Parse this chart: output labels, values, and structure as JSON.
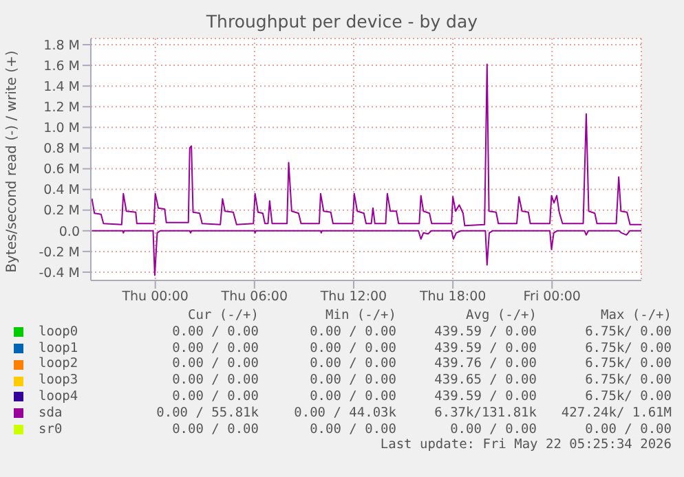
{
  "chart_data": {
    "type": "line",
    "title": "Throughput per device - by day",
    "ylabel": "Bytes/second read (-) / write (+)",
    "xlim": [
      "2026-05-20T20:06",
      "2026-05-22T05:24"
    ],
    "xticks": [
      {
        "value": "2026-05-21T00:00",
        "label": "Thu 00:00"
      },
      {
        "value": "2026-05-21T06:00",
        "label": "Thu 06:00"
      },
      {
        "value": "2026-05-21T12:00",
        "label": "Thu 12:00"
      },
      {
        "value": "2026-05-21T18:00",
        "label": "Thu 18:00"
      },
      {
        "value": "2026-05-22T00:00",
        "label": "Fri 00:00"
      }
    ],
    "ylim": [
      -0.48,
      1.86
    ],
    "yticks": [
      {
        "value": -0.4,
        "label": "-0.4 M"
      },
      {
        "value": -0.2,
        "label": "-0.2 M"
      },
      {
        "value": 0,
        "label": "0.0"
      },
      {
        "value": 0.2,
        "label": "0.2 M"
      },
      {
        "value": 0.4,
        "label": "0.4 M"
      },
      {
        "value": 0.6,
        "label": "0.6 M"
      },
      {
        "value": 0.8,
        "label": "0.8 M"
      },
      {
        "value": 1.0,
        "label": "1.0 M"
      },
      {
        "value": 1.2,
        "label": "1.2 M"
      },
      {
        "value": 1.4,
        "label": "1.4 M"
      },
      {
        "value": 1.6,
        "label": "1.6 M"
      },
      {
        "value": 1.8,
        "label": "1.8 M"
      }
    ],
    "grid": true,
    "legend": "bottom",
    "marker": "none",
    "line_style": "solid",
    "series": [
      {
        "name": "loop0",
        "color": "#00cc00"
      },
      {
        "name": "loop1",
        "color": "#0066b3"
      },
      {
        "name": "loop2",
        "color": "#ff8000"
      },
      {
        "name": "loop3",
        "color": "#ffcc00"
      },
      {
        "name": "loop4",
        "color": "#330099"
      },
      {
        "name": "sda",
        "color": "#990099",
        "x": [
          "2026-05-20T20:10",
          "2026-05-20T20:19",
          "2026-05-20T20:43",
          "2026-05-20T20:52",
          "2026-05-20T21:58",
          "2026-05-20T22:04",
          "2026-05-20T22:15",
          "2026-05-20T22:49",
          "2026-05-20T22:53",
          "2026-05-20T23:55",
          "2026-05-21T00:00",
          "2026-05-21T00:11",
          "2026-05-21T00:34",
          "2026-05-21T00:40",
          "2026-05-21T02:00",
          "2026-05-21T02:05",
          "2026-05-21T02:11",
          "2026-05-21T02:17",
          "2026-05-21T02:41",
          "2026-05-21T02:50",
          "2026-05-21T03:56",
          "2026-05-21T04:04",
          "2026-05-21T04:13",
          "2026-05-21T04:43",
          "2026-05-21T04:55",
          "2026-05-21T05:56",
          "2026-05-21T06:02",
          "2026-05-21T06:13",
          "2026-05-21T06:30",
          "2026-05-21T06:38",
          "2026-05-21T06:49",
          "2026-05-21T06:55",
          "2026-05-21T07:04",
          "2026-05-21T07:58",
          "2026-05-21T08:04",
          "2026-05-21T08:15",
          "2026-05-21T08:40",
          "2026-05-21T08:49",
          "2026-05-21T09:55",
          "2026-05-21T10:00",
          "2026-05-21T10:11",
          "2026-05-21T10:37",
          "2026-05-21T10:45",
          "2026-05-21T11:56",
          "2026-05-21T12:02",
          "2026-05-21T12:13",
          "2026-05-21T12:37",
          "2026-05-21T12:45",
          "2026-05-21T13:04",
          "2026-05-21T13:10",
          "2026-05-21T13:17",
          "2026-05-21T13:56",
          "2026-05-21T14:02",
          "2026-05-21T14:13",
          "2026-05-21T14:35",
          "2026-05-21T14:43",
          "2026-05-21T15:58",
          "2026-05-21T16:04",
          "2026-05-21T16:13",
          "2026-05-21T16:35",
          "2026-05-21T16:43",
          "2026-05-21T17:55",
          "2026-05-21T18:00",
          "2026-05-21T18:10",
          "2026-05-21T18:23",
          "2026-05-21T18:37",
          "2026-05-21T18:43",
          "2026-05-21T19:55",
          "2026-05-21T20:04",
          "2026-05-21T20:11",
          "2026-05-21T20:37",
          "2026-05-21T20:45",
          "2026-05-21T21:52",
          "2026-05-21T22:00",
          "2026-05-21T22:11",
          "2026-05-21T22:34",
          "2026-05-21T22:41",
          "2026-05-21T23:52",
          "2026-05-21T23:58",
          "2026-05-22T00:07",
          "2026-05-22T00:17",
          "2026-05-22T00:26",
          "2026-05-22T00:38",
          "2026-05-22T01:53",
          "2026-05-22T02:04",
          "2026-05-22T02:13",
          "2026-05-22T02:35",
          "2026-05-22T02:43",
          "2026-05-22T03:53",
          "2026-05-22T04:02",
          "2026-05-22T04:10",
          "2026-05-22T04:32",
          "2026-05-22T04:43",
          "2026-05-22T05:24"
        ],
        "values": [
          0.31,
          0.17,
          0.16,
          0.07,
          0.06,
          0.36,
          0.19,
          0.18,
          0.07,
          0.07,
          0.36,
          0.22,
          0.21,
          0.08,
          0.08,
          0.8,
          0.82,
          0.18,
          0.17,
          0.07,
          0.06,
          0.31,
          0.19,
          0.18,
          0.06,
          0.07,
          0.36,
          0.18,
          0.17,
          0.07,
          0.07,
          0.29,
          0.07,
          0.07,
          0.66,
          0.19,
          0.17,
          0.07,
          0.07,
          0.36,
          0.19,
          0.18,
          0.07,
          0.07,
          0.36,
          0.19,
          0.17,
          0.07,
          0.07,
          0.22,
          0.07,
          0.07,
          0.36,
          0.19,
          0.19,
          0.07,
          0.07,
          0.34,
          0.19,
          0.17,
          0.07,
          0.07,
          0.33,
          0.19,
          0.25,
          0.17,
          0.05,
          0.06,
          1.61,
          0.19,
          0.18,
          0.07,
          0.07,
          0.33,
          0.19,
          0.18,
          0.07,
          0.07,
          0.34,
          0.27,
          0.34,
          0.18,
          0.07,
          0.07,
          1.13,
          0.19,
          0.17,
          0.07,
          0.07,
          0.52,
          0.19,
          0.18,
          0.06,
          0.06
        ]
      },
      {
        "color": "#990099",
        "x": [
          "2026-05-20T20:10",
          "2026-05-20T22:02",
          "2026-05-20T22:04",
          "2026-05-20T22:07",
          "2026-05-20T23:52",
          "2026-05-20T23:58",
          "2026-05-21T00:07",
          "2026-05-21T00:18",
          "2026-05-21T02:05",
          "2026-05-21T02:08",
          "2026-05-21T02:12",
          "2026-05-21T06:00",
          "2026-05-21T06:02",
          "2026-05-21T06:05",
          "2026-05-21T10:00",
          "2026-05-21T10:02",
          "2026-05-21T10:05",
          "2026-05-21T15:55",
          "2026-05-21T16:04",
          "2026-05-21T16:13",
          "2026-05-21T16:30",
          "2026-05-21T16:42",
          "2026-05-21T17:55",
          "2026-05-21T18:02",
          "2026-05-21T18:12",
          "2026-05-21T18:30",
          "2026-05-21T19:58",
          "2026-05-21T20:04",
          "2026-05-21T20:12",
          "2026-05-21T20:24",
          "2026-05-21T23:52",
          "2026-05-21T23:58",
          "2026-05-22T00:06",
          "2026-05-22T00:18",
          "2026-05-22T01:58",
          "2026-05-22T02:04",
          "2026-05-22T02:12",
          "2026-05-22T04:02",
          "2026-05-22T04:12",
          "2026-05-22T04:30",
          "2026-05-22T04:42",
          "2026-05-22T05:24"
        ],
        "values": [
          0,
          0,
          -0.02,
          0,
          0,
          -0.43,
          -0.02,
          0,
          0,
          -0.02,
          0,
          0,
          -0.02,
          0,
          0,
          -0.02,
          0,
          0,
          -0.08,
          -0.02,
          -0.03,
          0,
          0,
          -0.08,
          -0.02,
          0,
          0,
          -0.33,
          -0.02,
          0,
          0,
          -0.18,
          -0.02,
          0,
          0,
          -0.04,
          0,
          0,
          -0.02,
          -0.04,
          0,
          0
        ]
      },
      {
        "name": "sr0",
        "color": "#ccff00"
      }
    ],
    "annotations": [
      "Cur (-/+)",
      "Min (-/+)",
      "Avg (-/+)",
      "Max (-/+)",
      "0.00 / 0.00",
      "0.00 / 0.00",
      "439.59 / 0.00",
      "6.75k/ 0.00",
      "0.00 / 0.00",
      "0.00 / 0.00",
      "439.59 / 0.00",
      "6.75k/ 0.00",
      "0.00 / 0.00",
      "0.00 / 0.00",
      "439.76 / 0.00",
      "6.75k/ 0.00",
      "0.00 / 0.00",
      "0.00 / 0.00",
      "439.65 / 0.00",
      "6.75k/ 0.00",
      "0.00 / 0.00",
      "0.00 / 0.00",
      "439.59 / 0.00",
      "6.75k/ 0.00",
      "0.00 / 55.81k",
      "0.00 / 44.03k",
      "6.37k/131.81k",
      "427.24k/ 1.61M",
      "0.00 / 0.00",
      "0.00 / 0.00",
      "0.00 / 0.00",
      "0.00 / 0.00",
      "Last update: Fri May 22 05:25:34 2026"
    ]
  }
}
